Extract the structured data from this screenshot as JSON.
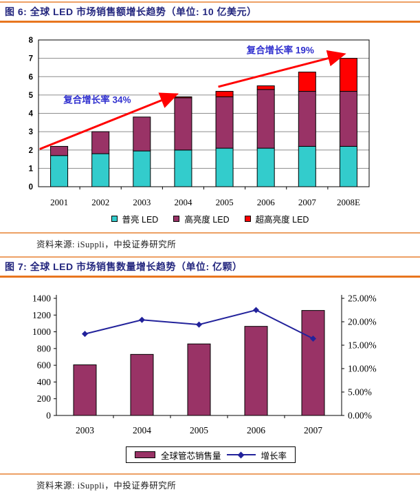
{
  "colors": {
    "accent_orange": "#e8761f",
    "accent_orange_light": "#eda064",
    "title_navy": "#23267e",
    "annotation_blue": "#3030cf",
    "arrow_red": "#ff0000",
    "teal": "#33cccc",
    "purple": "#993366",
    "red": "#ff0000",
    "line_navy": "#22229b",
    "grid_gray": "#8c8c8c",
    "axis_black": "#000000"
  },
  "fig6": {
    "title": "图 6: 全球 LED 市场销售额增长趋势（单位: 10 亿美元）",
    "source": "资料来源: iSuppli，中投证券研究所"
  },
  "fig7": {
    "title": "图 7: 全球 LED 市场销售数量增长趋势（单位: 亿颗）",
    "source": "资料来源: iSuppli，中投证券研究所"
  },
  "chart_data": [
    {
      "type": "bar",
      "subtype": "stacked",
      "title": "全球 LED 市场销售额增长趋势",
      "unit": "10 亿美元",
      "categories": [
        "2001",
        "2002",
        "2003",
        "2004",
        "2005",
        "2006",
        "2007",
        "2008E"
      ],
      "series": [
        {
          "name": "普亮 LED",
          "color": "#33cccc",
          "values": [
            1.7,
            1.8,
            1.95,
            2.0,
            2.1,
            2.1,
            2.2,
            2.2
          ]
        },
        {
          "name": "高亮度 LED",
          "color": "#993366",
          "values": [
            0.5,
            1.2,
            1.85,
            2.85,
            2.8,
            3.2,
            3.0,
            3.0
          ]
        },
        {
          "name": "超高亮度 LED",
          "color": "#ff0000",
          "values": [
            0,
            0,
            0,
            0.05,
            0.3,
            0.2,
            1.05,
            1.8
          ]
        }
      ],
      "totals": [
        2.2,
        3.0,
        3.8,
        4.9,
        5.2,
        5.5,
        6.25,
        7.0
      ],
      "ylim": [
        0,
        8
      ],
      "yticks": [
        0,
        1,
        2,
        3,
        4,
        5,
        6,
        7,
        8
      ],
      "grid": true,
      "legend_position": "bottom",
      "annotations": [
        {
          "text": "复合增长率 34%",
          "label_x": 1.42,
          "label_y": 4.72,
          "from_x": 0.03,
          "from_y": 2.05,
          "to_x": 3.3,
          "to_y": 5.0
        },
        {
          "text": "复合增长率 19%",
          "label_x": 5.85,
          "label_y": 7.42,
          "from_x": 4.35,
          "from_y": 5.45,
          "to_x": 7.35,
          "to_y": 7.2
        }
      ]
    },
    {
      "type": "bar",
      "subtype": "bar-with-line",
      "title": "全球 LED 市场销售数量增长趋势",
      "unit": "亿颗",
      "categories": [
        "2003",
        "2004",
        "2005",
        "2006",
        "2007"
      ],
      "bar_series": {
        "name": "全球管芯销售量",
        "color": "#993366",
        "axis": "left",
        "values": [
          605,
          730,
          855,
          1065,
          1255
        ]
      },
      "line_series": {
        "name": "增长率",
        "color": "#22229b",
        "axis": "right",
        "values_percent": [
          17.4,
          20.4,
          19.4,
          22.5,
          16.4
        ]
      },
      "ylim_left": [
        0,
        1400
      ],
      "yticks_left": [
        0,
        200,
        400,
        600,
        800,
        1000,
        1200,
        1400
      ],
      "ylim_right_percent": [
        0,
        25
      ],
      "yticks_right": [
        "0.00%",
        "5.00%",
        "10.00%",
        "15.00%",
        "20.00%",
        "25.00%"
      ],
      "grid": false,
      "legend_position": "bottom"
    }
  ]
}
